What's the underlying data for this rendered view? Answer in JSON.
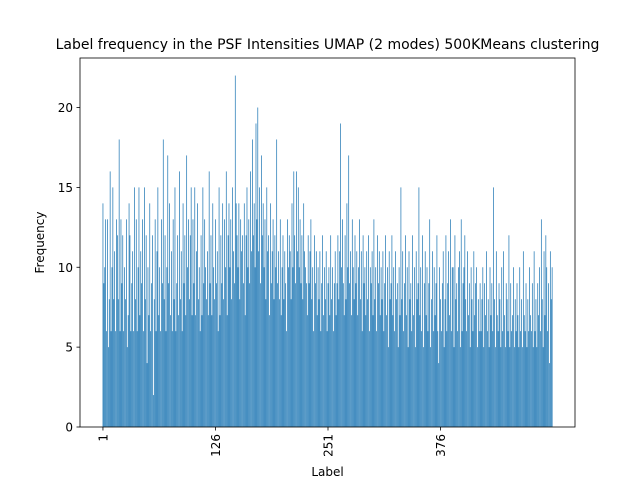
{
  "chart_data": {
    "type": "bar",
    "title": "Label frequency in the PSF Intensities UMAP (2 modes) 500KMeans clustering",
    "xlabel": "Label",
    "ylabel": "Frequency",
    "color": "#1f77b4",
    "xlim": [
      -24.5,
      525.4
    ],
    "xticks": [
      1,
      126,
      251,
      376
    ],
    "ylim": [
      0,
      23.1
    ],
    "yticks": [
      0,
      5,
      10,
      15,
      20
    ],
    "x": [
      1,
      2,
      3,
      4,
      5,
      6,
      7,
      8,
      9,
      10,
      11,
      12,
      13,
      14,
      15,
      16,
      17,
      18,
      19,
      20,
      21,
      22,
      23,
      24,
      25,
      26,
      27,
      28,
      29,
      30,
      31,
      32,
      33,
      34,
      35,
      36,
      37,
      38,
      39,
      40,
      41,
      42,
      43,
      44,
      45,
      46,
      47,
      48,
      49,
      50,
      51,
      52,
      53,
      54,
      55,
      56,
      57,
      58,
      59,
      60,
      61,
      62,
      63,
      64,
      65,
      66,
      67,
      68,
      69,
      70,
      71,
      72,
      73,
      74,
      75,
      76,
      77,
      78,
      79,
      80,
      81,
      82,
      83,
      84,
      85,
      86,
      87,
      88,
      89,
      90,
      91,
      92,
      93,
      94,
      95,
      96,
      97,
      98,
      99,
      100,
      101,
      102,
      103,
      104,
      105,
      106,
      107,
      108,
      109,
      110,
      111,
      112,
      113,
      114,
      115,
      116,
      117,
      118,
      119,
      120,
      121,
      122,
      123,
      124,
      125,
      126,
      127,
      128,
      129,
      130,
      131,
      132,
      133,
      134,
      135,
      136,
      137,
      138,
      139,
      140,
      141,
      142,
      143,
      144,
      145,
      146,
      147,
      148,
      149,
      150,
      151,
      152,
      153,
      154,
      155,
      156,
      157,
      158,
      159,
      160,
      161,
      162,
      163,
      164,
      165,
      166,
      167,
      168,
      169,
      170,
      171,
      172,
      173,
      174,
      175,
      176,
      177,
      178,
      179,
      180,
      181,
      182,
      183,
      184,
      185,
      186,
      187,
      188,
      189,
      190,
      191,
      192,
      193,
      194,
      195,
      196,
      197,
      198,
      199,
      200,
      201,
      202,
      203,
      204,
      205,
      206,
      207,
      208,
      209,
      210,
      211,
      212,
      213,
      214,
      215,
      216,
      217,
      218,
      219,
      220,
      221,
      222,
      223,
      224,
      225,
      226,
      227,
      228,
      229,
      230,
      231,
      232,
      233,
      234,
      235,
      236,
      237,
      238,
      239,
      240,
      241,
      242,
      243,
      244,
      245,
      246,
      247,
      248,
      249,
      250,
      251,
      252,
      253,
      254,
      255,
      256,
      257,
      258,
      259,
      260,
      261,
      262,
      263,
      264,
      265,
      266,
      267,
      268,
      269,
      270,
      271,
      272,
      273,
      274,
      275,
      276,
      277,
      278,
      279,
      280,
      281,
      282,
      283,
      284,
      285,
      286,
      287,
      288,
      289,
      290,
      291,
      292,
      293,
      294,
      295,
      296,
      297,
      298,
      299,
      300,
      301,
      302,
      303,
      304,
      305,
      306,
      307,
      308,
      309,
      310,
      311,
      312,
      313,
      314,
      315,
      316,
      317,
      318,
      319,
      320,
      321,
      322,
      323,
      324,
      325,
      326,
      327,
      328,
      329,
      330,
      331,
      332,
      333,
      334,
      335,
      336,
      337,
      338,
      339,
      340,
      341,
      342,
      343,
      344,
      345,
      346,
      347,
      348,
      349,
      350,
      351,
      352,
      353,
      354,
      355,
      356,
      357,
      358,
      359,
      360,
      361,
      362,
      363,
      364,
      365,
      366,
      367,
      368,
      369,
      370,
      371,
      372,
      373,
      374,
      375,
      376,
      377,
      378,
      379,
      380,
      381,
      382,
      383,
      384,
      385,
      386,
      387,
      388,
      389,
      390,
      391,
      392,
      393,
      394,
      395,
      396,
      397,
      398,
      399,
      400,
      401,
      402,
      403,
      404,
      405,
      406,
      407,
      408,
      409,
      410,
      411,
      412,
      413,
      414,
      415,
      416,
      417,
      418,
      419,
      420,
      421,
      422,
      423,
      424,
      425,
      426,
      427,
      428,
      429,
      430,
      431,
      432,
      433,
      434,
      435,
      436,
      437,
      438,
      439,
      440,
      441,
      442,
      443,
      444,
      445,
      446,
      447,
      448,
      449,
      450,
      451,
      452,
      453,
      454,
      455,
      456,
      457,
      458,
      459,
      460,
      461,
      462,
      463,
      464,
      465,
      466,
      467,
      468,
      469,
      470,
      471,
      472,
      473,
      474,
      475,
      476,
      477,
      478,
      479,
      480,
      481,
      482,
      483,
      484,
      485,
      486,
      487,
      488,
      489,
      490,
      491,
      492,
      493,
      494,
      495,
      496,
      497,
      498,
      499,
      500
    ],
    "values": [
      14,
      9,
      10,
      13,
      6,
      13,
      5,
      8,
      16,
      6,
      10,
      15,
      8,
      11,
      6,
      13,
      12,
      8,
      18,
      6,
      13,
      9,
      12,
      6,
      10,
      8,
      13,
      5,
      7,
      14,
      12,
      6,
      9,
      11,
      6,
      15,
      8,
      13,
      6,
      10,
      15,
      7,
      11,
      9,
      13,
      6,
      15,
      8,
      12,
      4,
      10,
      7,
      14,
      6,
      9,
      12,
      2,
      8,
      13,
      6,
      11,
      15,
      7,
      10,
      6,
      13,
      9,
      18,
      8,
      12,
      6,
      10,
      17,
      9,
      14,
      7,
      11,
      6,
      13,
      8,
      15,
      6,
      9,
      12,
      7,
      16,
      8,
      11,
      6,
      14,
      9,
      12,
      7,
      17,
      10,
      13,
      8,
      12,
      15,
      7,
      13,
      9,
      15,
      7,
      11,
      14,
      8,
      10,
      6,
      12,
      7,
      15,
      9,
      13,
      10,
      8,
      11,
      7,
      16,
      9,
      12,
      7,
      14,
      10,
      8,
      13,
      9,
      11,
      6,
      15,
      7,
      12,
      9,
      14,
      8,
      13,
      10,
      16,
      7,
      12,
      14,
      10,
      13,
      8,
      15,
      11,
      9,
      22,
      14,
      12,
      10,
      14,
      8,
      13,
      11,
      12,
      9,
      14,
      7,
      12,
      15,
      10,
      13,
      9,
      16,
      11,
      18,
      12,
      14,
      10,
      19,
      13,
      20,
      11,
      15,
      9,
      17,
      12,
      14,
      10,
      13,
      8,
      15,
      11,
      12,
      7,
      14,
      9,
      11,
      13,
      8,
      12,
      10,
      18,
      9,
      11,
      8,
      13,
      7,
      10,
      12,
      8,
      11,
      9,
      6,
      13,
      10,
      12,
      11,
      8,
      14,
      10,
      16,
      12,
      9,
      16,
      11,
      15,
      10,
      13,
      9,
      12,
      8,
      14,
      11,
      10,
      9,
      7,
      12,
      9,
      11,
      13,
      8,
      10,
      6,
      12,
      9,
      11,
      7,
      10,
      8,
      11,
      6,
      9,
      12,
      7,
      10,
      8,
      11,
      6,
      9,
      10,
      7,
      12,
      8,
      10,
      6,
      9,
      11,
      7,
      9,
      12,
      8,
      11,
      19,
      10,
      13,
      9,
      7,
      12,
      8,
      14,
      10,
      17,
      9,
      11,
      7,
      13,
      10,
      8,
      12,
      9,
      11,
      7,
      10,
      13,
      8,
      11,
      6,
      12,
      9,
      10,
      7,
      11,
      8,
      12,
      6,
      10,
      9,
      11,
      7,
      13,
      8,
      10,
      6,
      12,
      9,
      11,
      7,
      10,
      8,
      11,
      6,
      9,
      12,
      7,
      10,
      5,
      11,
      8,
      9,
      12,
      7,
      10,
      6,
      11,
      8,
      9,
      5,
      10,
      7,
      15,
      8,
      11,
      6,
      9,
      12,
      7,
      10,
      5,
      11,
      8,
      9,
      6,
      12,
      7,
      10,
      5,
      11,
      8,
      9,
      15,
      7,
      10,
      6,
      12,
      5,
      9,
      11,
      7,
      10,
      6,
      9,
      13,
      5,
      8,
      11,
      6,
      10,
      7,
      9,
      12,
      6,
      4,
      10,
      8,
      6,
      9,
      11,
      5,
      8,
      12,
      6,
      9,
      11,
      7,
      13,
      6,
      10,
      10,
      5,
      12,
      8,
      9,
      6,
      10,
      11,
      5,
      13,
      6,
      9,
      10,
      12,
      8,
      6,
      11,
      7,
      9,
      5,
      10,
      8,
      6,
      11,
      7,
      9,
      10,
      5,
      8,
      6,
      9,
      6,
      8,
      10,
      5,
      9,
      7,
      11,
      6,
      8,
      5,
      10,
      7,
      9,
      6,
      15,
      8,
      5,
      11,
      7,
      6,
      9,
      8,
      5,
      10,
      6,
      11,
      7,
      5,
      9,
      8,
      6,
      12,
      5,
      9,
      6,
      7,
      10,
      5,
      8,
      6,
      9,
      7,
      5,
      10,
      6,
      8,
      5,
      11,
      7,
      6,
      9,
      5,
      8,
      6,
      10,
      7,
      6,
      9,
      5,
      11,
      6,
      8,
      5,
      9,
      7,
      10,
      6,
      13,
      8,
      5,
      11,
      7,
      12,
      10,
      6,
      9,
      4,
      11,
      8,
      10
    ]
  }
}
